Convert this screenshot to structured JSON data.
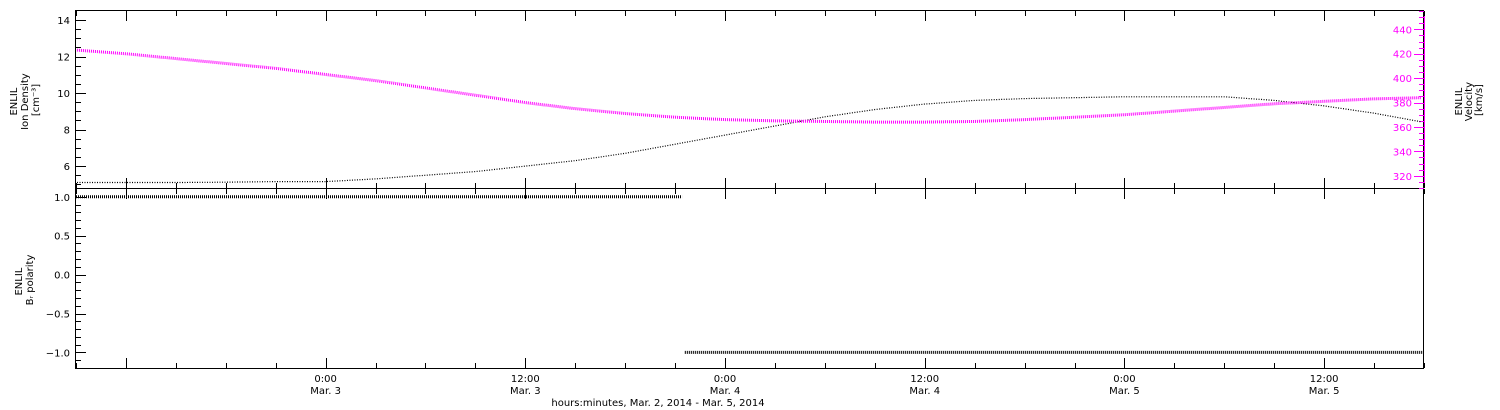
{
  "chart_data": [
    {
      "type": "line",
      "panel": "top",
      "x_axis": {
        "title": "hours:minutes, Mar.  2, 2014 - Mar.  5, 2014",
        "tick_labels": [
          {
            "time": "0:00",
            "date": "Mar. 3"
          },
          {
            "time": "12:00",
            "date": "Mar. 3"
          },
          {
            "time": "0:00",
            "date": "Mar. 4"
          },
          {
            "time": "12:00",
            "date": "Mar. 4"
          },
          {
            "time": "0:00",
            "date": "Mar. 5"
          },
          {
            "time": "12:00",
            "date": "Mar. 5"
          }
        ]
      },
      "y_left": {
        "label_lines": [
          "ENLIL",
          "Ion Density",
          "[cm⁻³]"
        ],
        "range": [
          4.8,
          14.5
        ],
        "ticks": [
          "6",
          "8",
          "10",
          "12",
          "14"
        ],
        "color": "#000000"
      },
      "y_right": {
        "label_lines": [
          "ENLIL",
          "Velocity",
          "[km/s]"
        ],
        "range": [
          310,
          455
        ],
        "ticks": [
          "320",
          "340",
          "360",
          "380",
          "400",
          "420",
          "440"
        ],
        "color": "#ff00ff"
      },
      "series": [
        {
          "axis": "left",
          "color": "#000000",
          "x": [
            "2014-03-02 09:00",
            "2014-03-02 12:00",
            "2014-03-02 15:00",
            "2014-03-02 18:00",
            "2014-03-02 21:00",
            "2014-03-03 00:00",
            "2014-03-03 03:00",
            "2014-03-03 06:00",
            "2014-03-03 09:00",
            "2014-03-03 12:00",
            "2014-03-03 15:00",
            "2014-03-03 18:00",
            "2014-03-03 21:00",
            "2014-03-04 00:00",
            "2014-03-04 03:00",
            "2014-03-04 06:00",
            "2014-03-04 09:00",
            "2014-03-04 12:00",
            "2014-03-04 15:00",
            "2014-03-04 18:00",
            "2014-03-04 21:00",
            "2014-03-05 00:00",
            "2014-03-05 03:00",
            "2014-03-05 06:00",
            "2014-03-05 09:00",
            "2014-03-05 12:00",
            "2014-03-05 15:00",
            "2014-03-05 18:00"
          ],
          "y": [
            5.1,
            5.1,
            5.1,
            5.12,
            5.15,
            5.15,
            5.3,
            5.5,
            5.7,
            6.0,
            6.3,
            6.7,
            7.2,
            7.7,
            8.2,
            8.7,
            9.1,
            9.4,
            9.6,
            9.7,
            9.75,
            9.8,
            9.8,
            9.8,
            9.6,
            9.3,
            8.9,
            8.4
          ]
        },
        {
          "axis": "right",
          "color": "#ff00ff",
          "x": [
            "2014-03-02 09:00",
            "2014-03-02 12:00",
            "2014-03-02 15:00",
            "2014-03-02 18:00",
            "2014-03-02 21:00",
            "2014-03-03 00:00",
            "2014-03-03 03:00",
            "2014-03-03 06:00",
            "2014-03-03 09:00",
            "2014-03-03 12:00",
            "2014-03-03 15:00",
            "2014-03-03 18:00",
            "2014-03-03 21:00",
            "2014-03-04 00:00",
            "2014-03-04 03:00",
            "2014-03-04 06:00",
            "2014-03-04 09:00",
            "2014-03-04 12:00",
            "2014-03-04 15:00",
            "2014-03-04 18:00",
            "2014-03-04 21:00",
            "2014-03-05 00:00",
            "2014-03-05 03:00",
            "2014-03-05 06:00",
            "2014-03-05 09:00",
            "2014-03-05 12:00",
            "2014-03-05 15:00",
            "2014-03-05 18:00"
          ],
          "y": [
            423,
            420,
            416,
            412,
            408,
            403,
            398,
            392,
            386,
            380,
            375,
            371,
            368,
            366,
            365,
            364.5,
            364,
            364,
            364.5,
            366,
            368,
            370,
            373,
            376,
            379,
            381,
            383,
            384
          ]
        }
      ]
    },
    {
      "type": "scatter",
      "panel": "bottom",
      "y_axis": {
        "label_lines": [
          "ENLIL",
          "Bᵣ polarity"
        ],
        "range": [
          -1.2,
          1.1
        ],
        "ticks": [
          "−1.0",
          "−0.5",
          "0.0",
          "0.5",
          "1.0"
        ]
      },
      "series": [
        {
          "color": "#000000",
          "segments": [
            {
              "x_start": "2014-03-02 09:00",
              "x_end": "2014-03-03 21:25",
              "y": 1.0
            },
            {
              "x_start": "2014-03-03 21:35",
              "x_end": "2014-03-05 18:00",
              "y": -1.0
            }
          ]
        }
      ]
    }
  ]
}
